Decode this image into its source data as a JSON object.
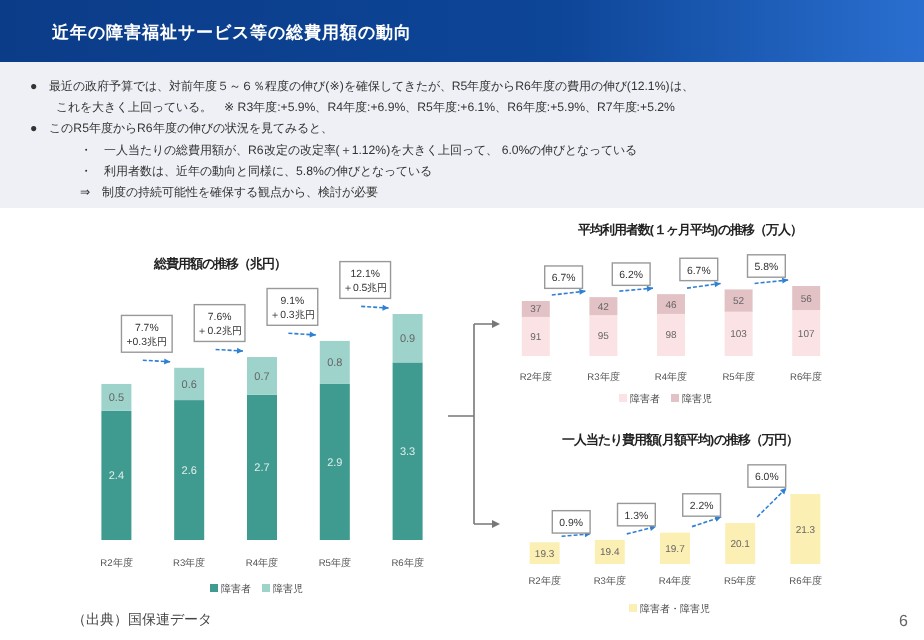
{
  "chart_data": [
    {
      "type": "other",
      "title": "近年の障害福祉サービス等の総費用額の動向",
      "annotations": [
        "●　最近の政府予算では、対前年度５～６％程度の伸び(※)を確保してきたが、R5年度からR6年度の費用の伸び(12.1%)は、",
        "これを大きく上回っている。　※ R3年度:+5.9%、R4年度:+6.9%、R5年度:+6.1%、R6年度:+5.9%、R7年度:+5.2%",
        "●　このR5年度からR6年度の伸びの状況を見てみると、",
        "・　一人当たりの総費用額が、R6改定の改定率(＋1.12%)を大きく上回って、 6.0%の伸びとなっている",
        "・　利用者数は、近年の動向と同様に、5.8%の伸びとなっている",
        "⇒　制度の持続可能性を確保する観点から、検討が必要",
        "（出典）国保連データ",
        "6"
      ]
    },
    {
      "type": "bar",
      "title": "総費用額の推移（兆円）",
      "stacked": true,
      "data_labels": true,
      "legend": "bottom",
      "categories": [
        "R2年度",
        "R3年度",
        "R4年度",
        "R5年度",
        "R6年度"
      ],
      "series": [
        {
          "name": "障害者",
          "color": "#3f9a90",
          "values": [
            2.4,
            2.6,
            2.7,
            2.9,
            3.3
          ]
        },
        {
          "name": "障害児",
          "color": "#9ed3cb",
          "values": [
            0.5,
            0.6,
            0.7,
            0.8,
            0.9
          ]
        }
      ],
      "annotations": [
        "7.7%\n+0.3兆円",
        "7.6%\n＋0.2兆円",
        "9.1%\n＋0.3兆円",
        "12.1%\n＋0.5兆円"
      ]
    },
    {
      "type": "bar",
      "title": "平均利用者数(１ヶ月平均)の推移（万人）",
      "stacked": true,
      "data_labels": true,
      "legend": "bottom",
      "categories": [
        "R2年度",
        "R3年度",
        "R4年度",
        "R5年度",
        "R6年度"
      ],
      "series": [
        {
          "name": "障害者",
          "color": "#fbe3e5",
          "values": [
            91,
            95,
            98,
            103,
            107
          ]
        },
        {
          "name": "障害児",
          "color": "#e2c2c5",
          "values": [
            37,
            42,
            46,
            52,
            56
          ]
        }
      ],
      "annotations": [
        "6.7%",
        "6.2%",
        "6.7%",
        "5.8%"
      ]
    },
    {
      "type": "bar",
      "title": "一人当たり費用額(月額平均)の推移（万円）",
      "data_labels": true,
      "legend": "bottom",
      "ylim": [
        18.4,
        21.5
      ],
      "categories": [
        "R2年度",
        "R3年度",
        "R4年度",
        "R5年度",
        "R6年度"
      ],
      "series": [
        {
          "name": "障害者・障害児",
          "color": "#fcefb3",
          "values": [
            19.3,
            19.4,
            19.7,
            20.1,
            21.3
          ]
        }
      ],
      "annotations": [
        "0.9%",
        "1.3%",
        "2.2%",
        "6.0%"
      ]
    }
  ]
}
